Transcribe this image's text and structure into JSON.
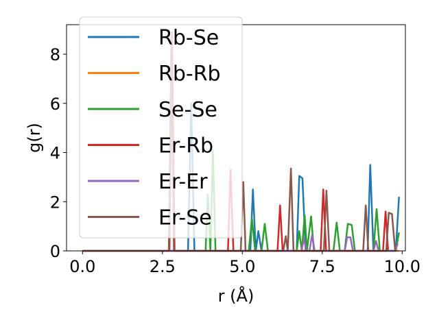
{
  "chart_data": {
    "type": "line",
    "xlabel": "r (Å)",
    "ylabel": "g(r)",
    "xlim": [
      -0.5,
      10.1
    ],
    "ylim": [
      0,
      9.2
    ],
    "xticks": [
      0.0,
      2.5,
      5.0,
      7.5,
      10.0
    ],
    "xtick_labels": [
      "0.0",
      "2.5",
      "5.0",
      "7.5",
      "10.0"
    ],
    "yticks": [
      0,
      2,
      4,
      6,
      8
    ],
    "ytick_labels": [
      "0",
      "2",
      "4",
      "6",
      "8"
    ],
    "grid": false,
    "legend_position": "top-left",
    "series": [
      {
        "name": "Rb-Se",
        "color": "#1f77b4",
        "points": [
          [
            0.0,
            0
          ],
          [
            3.3,
            0
          ],
          [
            3.4,
            6.0
          ],
          [
            3.5,
            0
          ],
          [
            5.25,
            0
          ],
          [
            5.33,
            2.5
          ],
          [
            5.42,
            0
          ],
          [
            5.5,
            0.8
          ],
          [
            5.6,
            0
          ],
          [
            6.7,
            0
          ],
          [
            6.78,
            3.05
          ],
          [
            6.88,
            2.95
          ],
          [
            6.98,
            0
          ],
          [
            8.92,
            0
          ],
          [
            9.0,
            3.5
          ],
          [
            9.1,
            0
          ],
          [
            9.8,
            0
          ],
          [
            9.9,
            2.2
          ]
        ]
      },
      {
        "name": "Rb-Rb",
        "color": "#ff7f0e",
        "points": [
          [
            0.0,
            0
          ],
          [
            9.9,
            0
          ]
        ]
      },
      {
        "name": "Se-Se",
        "color": "#2ca02c",
        "points": [
          [
            0.0,
            0
          ],
          [
            3.85,
            0
          ],
          [
            3.92,
            2.3
          ],
          [
            4.0,
            0
          ],
          [
            4.08,
            4.1
          ],
          [
            4.16,
            0
          ],
          [
            5.2,
            0
          ],
          [
            5.3,
            1.3
          ],
          [
            5.4,
            0
          ],
          [
            5.6,
            0
          ],
          [
            5.7,
            1.1
          ],
          [
            5.8,
            0
          ],
          [
            6.7,
            0
          ],
          [
            6.78,
            0.8
          ],
          [
            6.86,
            0
          ],
          [
            6.95,
            1.45
          ],
          [
            7.02,
            0
          ],
          [
            7.15,
            1.4
          ],
          [
            7.24,
            0
          ],
          [
            7.85,
            0
          ],
          [
            7.95,
            1.15
          ],
          [
            8.05,
            0
          ],
          [
            8.2,
            0
          ],
          [
            8.3,
            1.1
          ],
          [
            8.42,
            1.05
          ],
          [
            8.52,
            0
          ],
          [
            9.1,
            0
          ],
          [
            9.2,
            1.7
          ],
          [
            9.3,
            0
          ],
          [
            9.8,
            0
          ],
          [
            9.9,
            0.75
          ]
        ]
      },
      {
        "name": "Er-Rb",
        "color": "#d62728",
        "points": [
          [
            0.0,
            0
          ],
          [
            2.72,
            0
          ],
          [
            2.8,
            8.9
          ],
          [
            2.88,
            0
          ],
          [
            4.55,
            0
          ],
          [
            4.63,
            3.3
          ],
          [
            4.72,
            0
          ],
          [
            6.1,
            0
          ],
          [
            6.18,
            1.85
          ],
          [
            6.26,
            0
          ],
          [
            7.45,
            0
          ],
          [
            7.53,
            2.5
          ],
          [
            7.62,
            0
          ],
          [
            9.4,
            0
          ],
          [
            9.48,
            1.6
          ],
          [
            9.56,
            0
          ]
        ]
      },
      {
        "name": "Er-Er",
        "color": "#9467bd",
        "points": [
          [
            0.0,
            0
          ],
          [
            6.85,
            0
          ],
          [
            6.93,
            0.5
          ],
          [
            7.0,
            0
          ],
          [
            7.1,
            0
          ],
          [
            7.18,
            0.65
          ],
          [
            7.26,
            0
          ],
          [
            8.2,
            0
          ],
          [
            8.28,
            0.55
          ],
          [
            8.38,
            0.55
          ],
          [
            8.46,
            0
          ],
          [
            9.1,
            0
          ],
          [
            9.18,
            0.4
          ],
          [
            9.26,
            0
          ],
          [
            9.78,
            0
          ],
          [
            9.86,
            0.3
          ]
        ]
      },
      {
        "name": "Er-Se",
        "color": "#8c564b",
        "points": [
          [
            0.0,
            0
          ],
          [
            2.7,
            0
          ],
          [
            2.78,
            8.7
          ],
          [
            2.86,
            0
          ],
          [
            4.95,
            0
          ],
          [
            5.03,
            2.8
          ],
          [
            5.1,
            0
          ],
          [
            6.28,
            0
          ],
          [
            6.36,
            0.6
          ],
          [
            6.42,
            0
          ],
          [
            6.52,
            3.35
          ],
          [
            6.6,
            0
          ],
          [
            7.55,
            0
          ],
          [
            7.63,
            2.45
          ],
          [
            7.72,
            0
          ],
          [
            8.78,
            0
          ],
          [
            8.86,
            1.85
          ],
          [
            8.94,
            0
          ],
          [
            9.5,
            0
          ],
          [
            9.58,
            1.55
          ],
          [
            9.68,
            1.5
          ],
          [
            9.78,
            0
          ]
        ]
      }
    ]
  }
}
